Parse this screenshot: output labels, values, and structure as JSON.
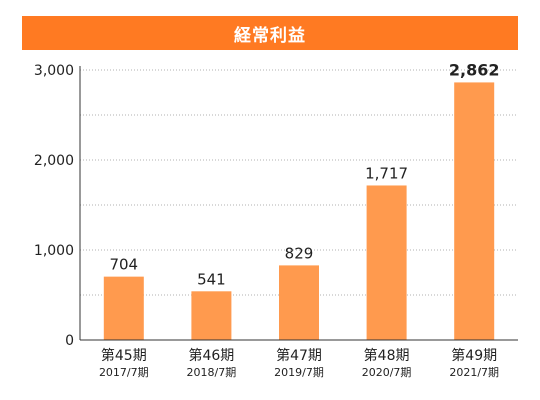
{
  "colors": {
    "title_background": "#FF7A22",
    "bar": "#FF9A4E",
    "grid": "#B0B0B0",
    "axis": "#333333",
    "text": "#222222"
  },
  "chart_data": {
    "type": "bar",
    "title": "経常利益",
    "xlabel": "",
    "ylabel": "",
    "ylim": [
      0,
      3000
    ],
    "yticks": [
      0,
      1000,
      2000,
      3000
    ],
    "ytick_labels": [
      "0",
      "1,000",
      "2,000",
      "3,000"
    ],
    "grid": true,
    "categories": [
      "第45期",
      "第46期",
      "第47期",
      "第48期",
      "第49期"
    ],
    "subcategories": [
      "2017/7期",
      "2018/7期",
      "2019/7期",
      "2020/7期",
      "2021/7期"
    ],
    "values": [
      704,
      541,
      829,
      1717,
      2862
    ],
    "value_labels": [
      "704",
      "541",
      "829",
      "1,717",
      "2,862"
    ],
    "highlight_index": 4
  }
}
